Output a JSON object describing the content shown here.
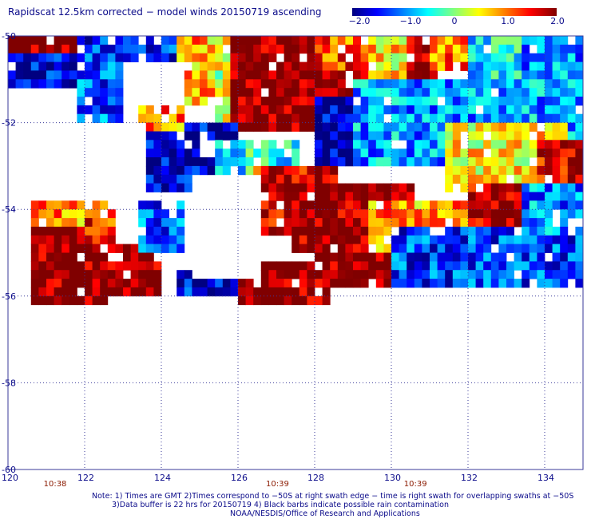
{
  "title": "Rapidscat 12.5km corrected − model winds 20150719 ascending",
  "colorbar": {
    "labels": [
      "−2.0",
      "−1.0",
      "0",
      "1.0",
      "2.0"
    ],
    "values": [
      -2.0,
      -1.0,
      0,
      1.0,
      2.0
    ],
    "colors": [
      "#000080",
      "#0000ff",
      "#00ffff",
      "#ffff00",
      "#ff0000",
      "#800000"
    ]
  },
  "axes": {
    "lat_labels": [
      "-50",
      "-52",
      "-54",
      "-56",
      "-58",
      "-60"
    ],
    "lat_values": [
      -50,
      -52,
      -54,
      -56,
      -58,
      -60
    ],
    "lon_labels": [
      "120",
      "122",
      "124",
      "126",
      "128",
      "130",
      "132",
      "134"
    ],
    "lon_values": [
      120,
      122,
      124,
      126,
      128,
      130,
      132,
      134
    ],
    "lon_range": [
      120,
      135
    ],
    "lat_range": [
      -50,
      -60
    ]
  },
  "times": [
    {
      "label": "10:38",
      "lon": 121.2
    },
    {
      "label": "10:39",
      "lon": 127.0
    },
    {
      "label": "10:39",
      "lon": 130.6
    }
  ],
  "notes": [
    "Note: 1) Times are GMT 2)Times correspond to −50S at right swath edge − time is right swath for overlapping swaths at −50S",
    "3)Data buffer is 22 hrs for 20150719 4) Black barbs indicate possible rain contamination",
    "NOAA/NESDIS/Office of Research and Applications"
  ],
  "wind_difference_regions": [
    {
      "lon": [
        120.0,
        122.5
      ],
      "lat": [
        -50.0,
        -51.0
      ],
      "value": 2.0
    },
    {
      "lon": [
        120.0,
        122.0
      ],
      "lat": [
        -50.5,
        -51.3
      ],
      "value": -1.6
    },
    {
      "lon": [
        121.8,
        123.0
      ],
      "lat": [
        -50.0,
        -52.0
      ],
      "value": -1.2
    },
    {
      "lon": [
        122.0,
        125.5
      ],
      "lat": [
        -50.0,
        -50.6
      ],
      "value": -1.4
    },
    {
      "lon": [
        124.5,
        127.0
      ],
      "lat": [
        -50.0,
        -51.5
      ],
      "value": 0.8
    },
    {
      "lon": [
        125.5,
        127.5
      ],
      "lat": [
        -50.3,
        -52.0
      ],
      "value": 0.3
    },
    {
      "lon": [
        125.8,
        129.3
      ],
      "lat": [
        -50.0,
        -52.2
      ],
      "value": 2.0
    },
    {
      "lon": [
        128.0,
        129.5
      ],
      "lat": [
        -50.0,
        -50.8
      ],
      "value": 1.2
    },
    {
      "lon": [
        129.5,
        130.8
      ],
      "lat": [
        -50.0,
        -51.0
      ],
      "value": 0.6
    },
    {
      "lon": [
        130.5,
        131.2
      ],
      "lat": [
        -50.0,
        -51.0
      ],
      "value": 2.0
    },
    {
      "lon": [
        131.0,
        132.0
      ],
      "lat": [
        -50.0,
        -50.8
      ],
      "value": 1.0
    },
    {
      "lon": [
        132.0,
        133.5
      ],
      "lat": [
        -50.0,
        -51.0
      ],
      "value": -0.6
    },
    {
      "lon": [
        133.5,
        135.0
      ],
      "lat": [
        -50.0,
        -51.0
      ],
      "value": -1.0
    },
    {
      "lon": [
        128.0,
        130.5
      ],
      "lat": [
        -51.5,
        -53.0
      ],
      "value": -1.8
    },
    {
      "lon": [
        129.0,
        135.0
      ],
      "lat": [
        -51.0,
        -53.0
      ],
      "value": -0.9
    },
    {
      "lon": [
        131.5,
        134.5
      ],
      "lat": [
        -52.0,
        -53.5
      ],
      "value": 0.5
    },
    {
      "lon": [
        133.8,
        135.0
      ],
      "lat": [
        -52.5,
        -53.5
      ],
      "value": 1.6
    },
    {
      "lon": [
        123.0,
        126.0
      ],
      "lat": [
        -52.0,
        -53.5
      ],
      "value": -1.7
    },
    {
      "lon": [
        123.5,
        124.5
      ],
      "lat": [
        -51.5,
        -52.2
      ],
      "value": 1.0
    },
    {
      "lon": [
        125.5,
        127.5
      ],
      "lat": [
        -52.5,
        -54.0
      ],
      "value": -0.5
    },
    {
      "lon": [
        126.5,
        128.5
      ],
      "lat": [
        -53.0,
        -54.5
      ],
      "value": 1.6
    },
    {
      "lon": [
        127.5,
        130.5
      ],
      "lat": [
        -53.5,
        -55.0
      ],
      "value": 1.9
    },
    {
      "lon": [
        128.0,
        130.0
      ],
      "lat": [
        -54.5,
        -55.8
      ],
      "value": 2.0
    },
    {
      "lon": [
        126.0,
        128.5
      ],
      "lat": [
        -55.3,
        -56.1
      ],
      "value": 2.0
    },
    {
      "lon": [
        129.5,
        132.0
      ],
      "lat": [
        -53.8,
        -55.0
      ],
      "value": 0.9
    },
    {
      "lon": [
        132.0,
        133.5
      ],
      "lat": [
        -53.5,
        -54.5
      ],
      "value": 1.8
    },
    {
      "lon": [
        130.0,
        135.0
      ],
      "lat": [
        -54.5,
        -55.8
      ],
      "value": -1.3
    },
    {
      "lon": [
        133.5,
        135.0
      ],
      "lat": [
        -53.5,
        -54.5
      ],
      "value": -1.0
    },
    {
      "lon": [
        120.5,
        122.5
      ],
      "lat": [
        -53.8,
        -54.5
      ],
      "value": 0.9
    },
    {
      "lon": [
        120.5,
        122.5
      ],
      "lat": [
        -54.5,
        -56.2
      ],
      "value": 2.0
    },
    {
      "lon": [
        122.0,
        122.8
      ],
      "lat": [
        -54.0,
        -56.0
      ],
      "value": 1.4
    },
    {
      "lon": [
        122.0,
        124.0
      ],
      "lat": [
        -54.8,
        -56.0
      ],
      "value": 2.0
    },
    {
      "lon": [
        123.5,
        124.5
      ],
      "lat": [
        -53.8,
        -55.0
      ],
      "value": -1.2
    },
    {
      "lon": [
        124.5,
        126.0
      ],
      "lat": [
        -55.5,
        -56.0
      ],
      "value": -1.5
    }
  ],
  "missing_regions": [
    {
      "lon": [
        120.0,
        121.8
      ],
      "lat": [
        -51.3,
        -53.8
      ]
    },
    {
      "lon": [
        121.8,
        123.5
      ],
      "lat": [
        -52.0,
        -53.8
      ]
    },
    {
      "lon": [
        123.0,
        124.5
      ],
      "lat": [
        -50.7,
        -51.5
      ]
    },
    {
      "lon": [
        124.8,
        126.5
      ],
      "lat": [
        -53.3,
        -55.5
      ]
    },
    {
      "lon": [
        120.0,
        120.5
      ],
      "lat": [
        -53.8,
        -56.2
      ]
    },
    {
      "lon": [
        120.0,
        135.0
      ],
      "lat": [
        -56.2,
        -60.0
      ]
    },
    {
      "lon": [
        128.5,
        131.0
      ],
      "lat": [
        -55.8,
        -56.2
      ]
    },
    {
      "lon": [
        131.0,
        135.0
      ],
      "lat": [
        -55.8,
        -56.2
      ]
    }
  ]
}
